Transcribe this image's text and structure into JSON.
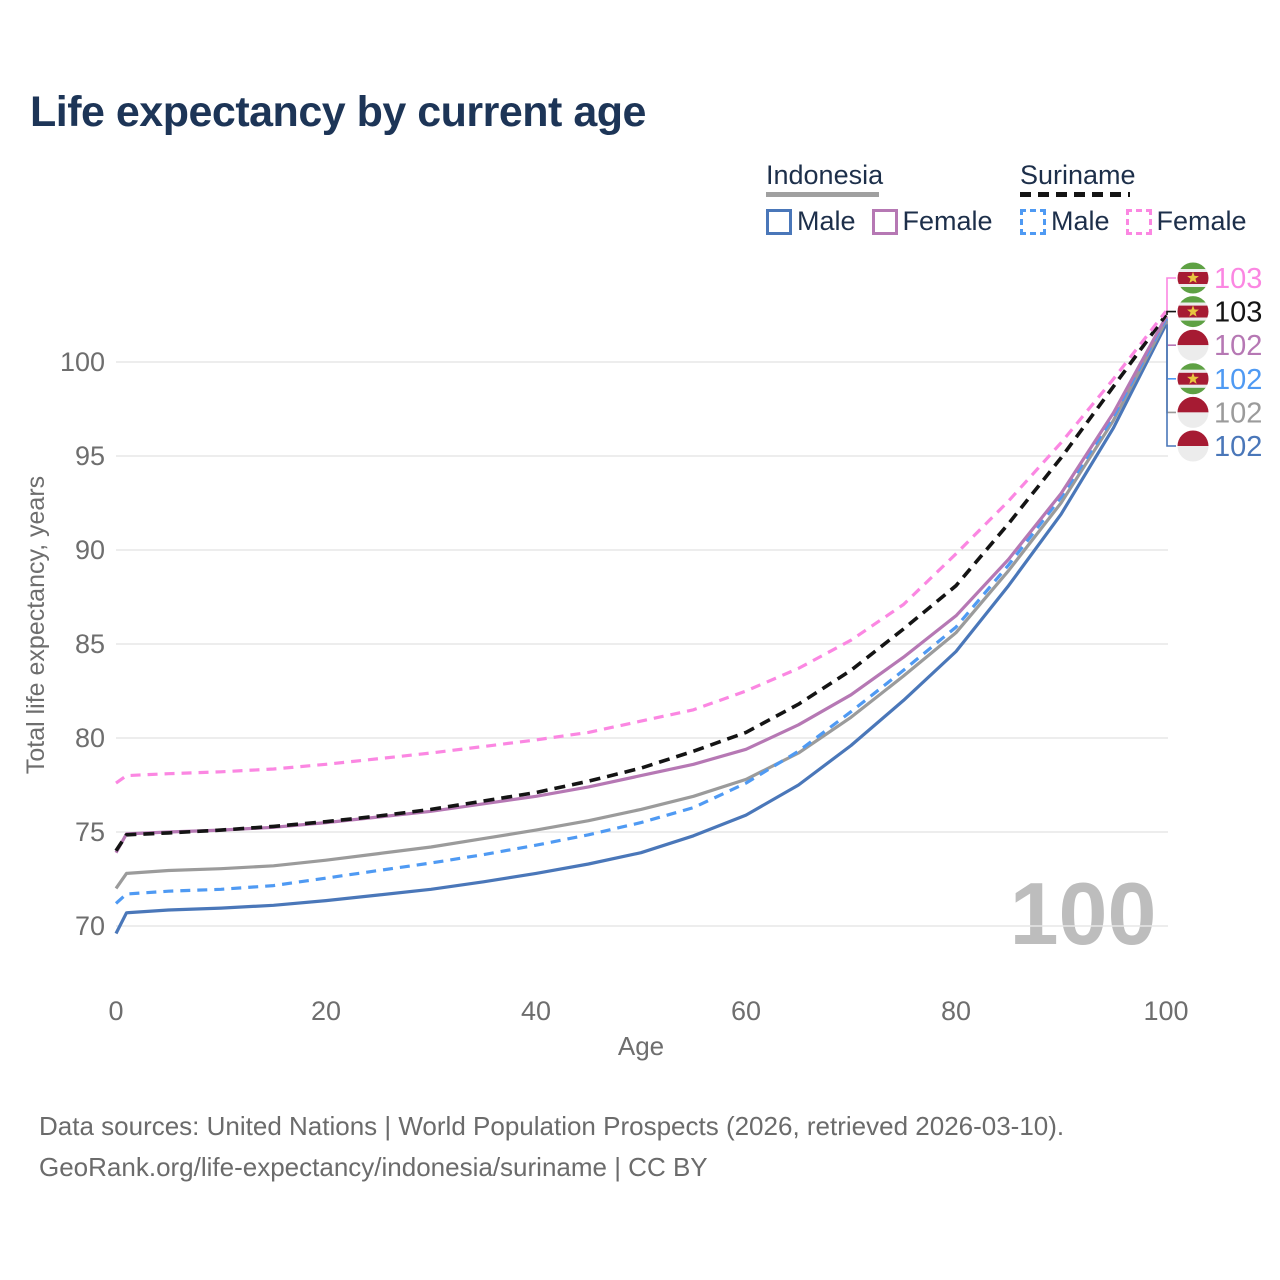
{
  "title": "Life expectancy by current age",
  "legend": {
    "groups": [
      {
        "country": "Indonesia",
        "line_style": "solid",
        "underline_color": "#a0a0a0",
        "items": [
          {
            "label": "Male",
            "color": "#4a77b9",
            "dash": false
          },
          {
            "label": "Female",
            "color": "#b678b4",
            "dash": false
          }
        ]
      },
      {
        "country": "Suriname",
        "line_style": "dashed",
        "underline_color": "#141414",
        "items": [
          {
            "label": "Male",
            "color": "#4f9af3",
            "dash": true
          },
          {
            "label": "Female",
            "color": "#fb87e2",
            "dash": true
          }
        ]
      }
    ]
  },
  "watermark_hover_age": "100",
  "footer": {
    "line1": "Data sources: United Nations | World Population Prospects (2026, retrieved 2026-03-10).",
    "line2": "GeoRank.org/life-expectancy/indonesia/suriname | CC BY"
  },
  "colors": {
    "title_text": "#1d3557",
    "legend_text": "#1d2f4a",
    "axis_text": "#6e6e6e",
    "gridline": "#e7e7e7",
    "watermark": "#bdbdbd",
    "footer_text": "#6b6b6b"
  },
  "chart_data": {
    "type": "line",
    "title": "Life expectancy by current age",
    "xlabel": "Age",
    "ylabel": "Total life expectancy, years",
    "xlim": [
      0,
      100
    ],
    "ylim": [
      69,
      104
    ],
    "xticks": [
      0,
      20,
      40,
      60,
      80,
      100
    ],
    "yticks": [
      70,
      75,
      80,
      85,
      90,
      95,
      100
    ],
    "grid": "horizontal-only",
    "legend_position": "top-right",
    "x": [
      0,
      1,
      5,
      10,
      15,
      20,
      25,
      30,
      35,
      40,
      45,
      50,
      55,
      60,
      65,
      70,
      75,
      80,
      85,
      90,
      95,
      100
    ],
    "series": [
      {
        "name": "Suriname Female",
        "country": "Suriname",
        "sex": "Female",
        "flag": "suriname",
        "color": "#fb87e2",
        "dash": true,
        "end_label": "103",
        "values": [
          77.6,
          78.0,
          78.1,
          78.2,
          78.35,
          78.6,
          78.9,
          79.2,
          79.55,
          79.9,
          80.3,
          80.9,
          81.5,
          82.5,
          83.7,
          85.2,
          87.1,
          89.8,
          92.6,
          95.7,
          99.1,
          102.7
        ]
      },
      {
        "name": "Suriname",
        "country": "Suriname",
        "sex": "Both",
        "flag": "suriname",
        "color": "#141414",
        "dash": true,
        "end_label": "103",
        "values": [
          74.0,
          74.85,
          74.95,
          75.1,
          75.3,
          75.55,
          75.85,
          76.2,
          76.65,
          77.1,
          77.7,
          78.4,
          79.3,
          80.3,
          81.8,
          83.6,
          85.8,
          88.1,
          91.4,
          94.9,
          98.7,
          102.5
        ]
      },
      {
        "name": "Indonesia Female",
        "country": "Indonesia",
        "sex": "Female",
        "flag": "indonesia",
        "color": "#b678b4",
        "dash": false,
        "end_label": "102",
        "values": [
          73.9,
          74.9,
          75.0,
          75.1,
          75.25,
          75.5,
          75.8,
          76.1,
          76.5,
          76.9,
          77.4,
          78.0,
          78.6,
          79.4,
          80.7,
          82.3,
          84.3,
          86.5,
          89.5,
          93.0,
          97.3,
          102.4
        ]
      },
      {
        "name": "Suriname Male",
        "country": "Suriname",
        "sex": "Male",
        "flag": "suriname",
        "color": "#4f9af3",
        "dash": true,
        "end_label": "102",
        "values": [
          71.2,
          71.7,
          71.85,
          71.95,
          72.15,
          72.55,
          72.95,
          73.35,
          73.8,
          74.3,
          74.85,
          75.5,
          76.3,
          77.6,
          79.3,
          81.4,
          83.6,
          85.9,
          89.2,
          92.8,
          97.1,
          102.3
        ]
      },
      {
        "name": "Indonesia",
        "country": "Indonesia",
        "sex": "Both",
        "flag": "indonesia",
        "color": "#9b9b9b",
        "dash": false,
        "end_label": "102",
        "values": [
          72.0,
          72.8,
          72.95,
          73.05,
          73.2,
          73.5,
          73.85,
          74.2,
          74.65,
          75.1,
          75.6,
          76.2,
          76.9,
          77.8,
          79.2,
          81.1,
          83.3,
          85.6,
          88.9,
          92.5,
          96.9,
          102.2
        ]
      },
      {
        "name": "Indonesia Male",
        "country": "Indonesia",
        "sex": "Male",
        "flag": "indonesia",
        "color": "#4a77b9",
        "dash": false,
        "end_label": "102",
        "values": [
          69.6,
          70.7,
          70.85,
          70.95,
          71.1,
          71.35,
          71.65,
          71.95,
          72.35,
          72.8,
          73.3,
          73.9,
          74.8,
          75.9,
          77.5,
          79.6,
          82.0,
          84.6,
          88.1,
          91.9,
          96.5,
          102.0
        ]
      }
    ],
    "flags": {
      "indonesia": {
        "red": "#a61b33",
        "white": "#ececec"
      },
      "suriname": {
        "green": "#5ea144",
        "white": "#ececec",
        "red": "#a61b33",
        "star": "#e8c63f"
      }
    }
  }
}
